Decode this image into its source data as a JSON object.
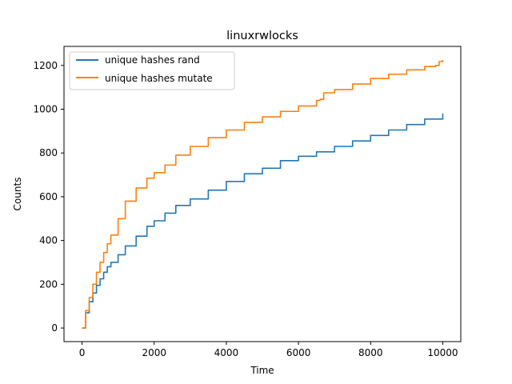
{
  "chart_data": {
    "type": "line",
    "title": "linuxrwlocks",
    "xlabel": "Time",
    "ylabel": "Counts",
    "xlim": [
      -500,
      10500
    ],
    "ylim": [
      -62,
      1287
    ],
    "xticks": [
      0,
      2000,
      4000,
      6000,
      8000,
      10000
    ],
    "yticks": [
      0,
      200,
      400,
      600,
      800,
      1000,
      1200
    ],
    "grid": false,
    "legend_position": "top-left",
    "series": [
      {
        "name": "unique hashes rand",
        "color": "#1f77b4",
        "x": [
          0,
          100,
          200,
          300,
          400,
          500,
          600,
          700,
          800,
          1000,
          1200,
          1500,
          1800,
          2000,
          2300,
          2600,
          3000,
          3500,
          4000,
          4500,
          5000,
          5500,
          6000,
          6500,
          7000,
          7500,
          8000,
          8500,
          9000,
          9500,
          10000
        ],
        "y": [
          0,
          70,
          120,
          160,
          195,
          225,
          255,
          280,
          300,
          335,
          375,
          420,
          465,
          490,
          525,
          560,
          590,
          630,
          670,
          705,
          730,
          765,
          785,
          805,
          830,
          855,
          880,
          905,
          930,
          955,
          980
        ]
      },
      {
        "name": "unique hashes mutate",
        "color": "#ff7f0e",
        "x": [
          0,
          100,
          200,
          300,
          400,
          500,
          600,
          700,
          800,
          1000,
          1200,
          1500,
          1800,
          2000,
          2300,
          2600,
          3000,
          3500,
          4000,
          4500,
          5000,
          5500,
          6000,
          6500,
          6600,
          6700,
          7000,
          7500,
          8000,
          8500,
          9000,
          9500,
          9800,
          9900,
          10000
        ],
        "y": [
          0,
          80,
          140,
          200,
          255,
          300,
          345,
          385,
          425,
          500,
          580,
          640,
          685,
          710,
          745,
          790,
          830,
          870,
          905,
          940,
          965,
          990,
          1015,
          1040,
          1045,
          1075,
          1090,
          1115,
          1140,
          1160,
          1180,
          1195,
          1200,
          1218,
          1225
        ]
      }
    ]
  }
}
